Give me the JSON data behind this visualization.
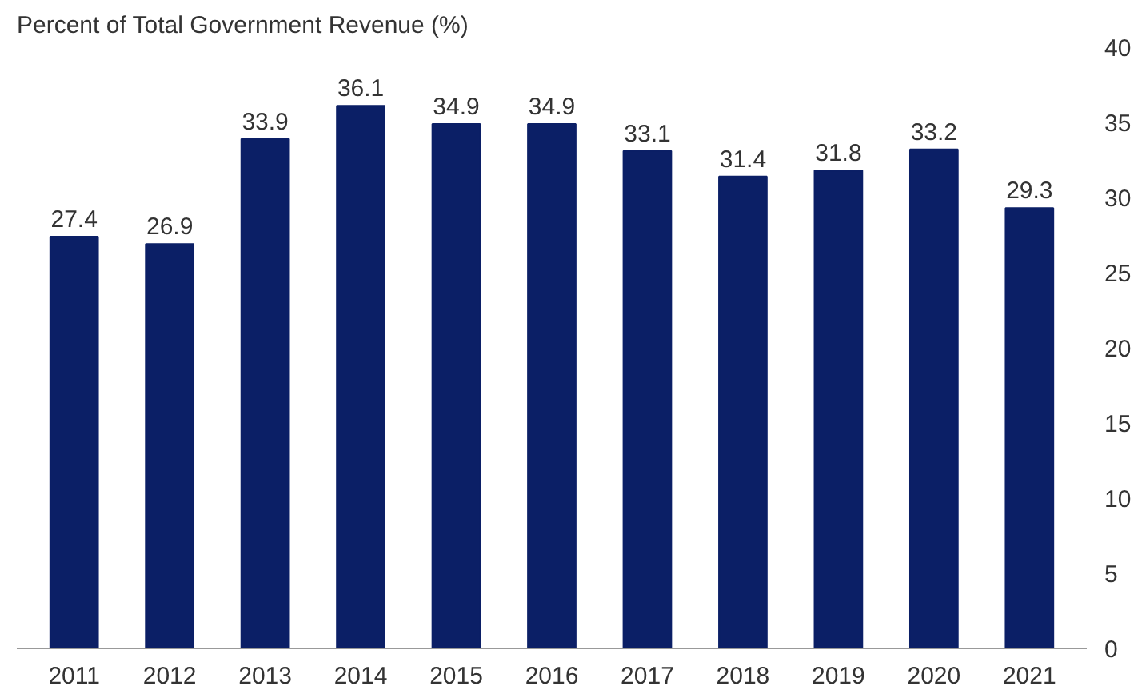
{
  "chart_data": {
    "type": "bar",
    "title": "Percent of Total Government Revenue (%)",
    "categories": [
      "2011",
      "2012",
      "2013",
      "2014",
      "2015",
      "2016",
      "2017",
      "2018",
      "2019",
      "2020",
      "2021"
    ],
    "values": [
      27.4,
      26.9,
      33.9,
      36.1,
      34.9,
      34.9,
      33.1,
      31.4,
      31.8,
      33.2,
      29.3
    ],
    "color": "#0b1f66",
    "ylim": [
      0,
      40
    ],
    "yticks": [
      0,
      5,
      10,
      15,
      20,
      25,
      30,
      35,
      40
    ],
    "grid": false,
    "data_labels": true
  }
}
